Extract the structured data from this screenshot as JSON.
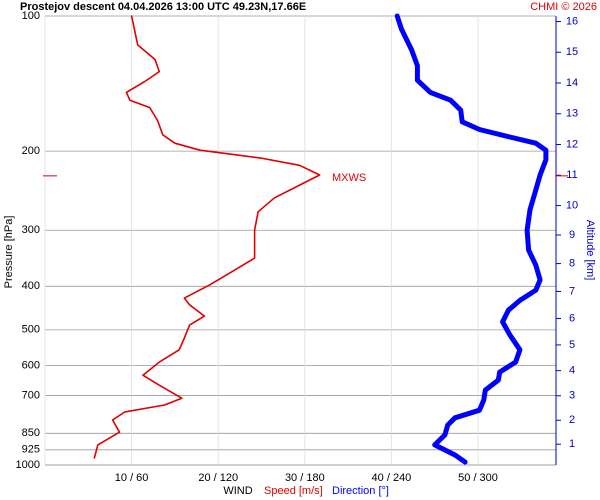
{
  "chart_data": {
    "type": "line",
    "title": "Prostejov  descent  04.04.2026 13:00 UTC  49.23N,17.66E",
    "credit": "CHMI © 2026",
    "ylabel": "Pressure [hPa]",
    "y2label": "Altitude [km]",
    "xlabel": "WIND",
    "log_y": true,
    "grid": true,
    "ylim": [
      1000,
      100
    ],
    "yticks": [
      100,
      200,
      300,
      400,
      500,
      600,
      700,
      850,
      925,
      1000
    ],
    "y2ticks": [
      1,
      2,
      3,
      4,
      5,
      6,
      7,
      8,
      9,
      10,
      11,
      12,
      13,
      14,
      15,
      16
    ],
    "xlim": [
      0,
      59
    ],
    "xticks": [
      {
        "value": 10,
        "label": "10 / 60"
      },
      {
        "value": 20,
        "label": "20 / 120"
      },
      {
        "value": 30,
        "label": "30 / 180"
      },
      {
        "value": 40,
        "label": "40 / 240"
      },
      {
        "value": 50,
        "label": "50 / 300"
      }
    ],
    "series": [
      {
        "name": "Speed [m/s]",
        "color": "#e00000",
        "pressure": [
          100,
          116,
          125,
          133,
          140,
          148,
          154,
          160,
          171,
          184,
          192,
          199,
          207,
          215,
          226,
          238,
          254,
          273,
          300,
          346,
          368,
          397,
          425,
          440,
          466,
          488,
          521,
          554,
          590,
          631,
          664,
          710,
          735,
          762,
          794,
          845,
          902,
          964
        ],
        "values": [
          10.0,
          10.7,
          12.7,
          13.2,
          11.5,
          9.4,
          9.8,
          12.1,
          13.0,
          13.6,
          15.0,
          17.9,
          24.8,
          29.4,
          31.7,
          29.4,
          26.5,
          24.6,
          24.2,
          24.2,
          21.9,
          19.0,
          16.1,
          16.7,
          18.4,
          16.7,
          16.1,
          15.5,
          13.2,
          11.3,
          13.2,
          15.8,
          13.8,
          9.2,
          7.8,
          8.6,
          6.1,
          5.7
        ]
      },
      {
        "name": "Direction [°]",
        "color": "#0000ff",
        "xlim": [
          0,
          354
        ],
        "pressure": [
          100,
          107,
          119,
          129,
          139,
          148,
          154,
          162,
          172,
          179,
          186,
          192,
          199,
          209,
          226,
          244,
          270,
          300,
          332,
          359,
          387,
          408,
          430,
          452,
          480,
          513,
          554,
          590,
          621,
          647,
          681,
          716,
          755,
          785,
          815,
          857,
          902,
          950,
          985
        ],
        "values": [
          244,
          247,
          254,
          258,
          258,
          267,
          281,
          288,
          289,
          301,
          322,
          340,
          347,
          347,
          343,
          340,
          336,
          334,
          335,
          340,
          343,
          340,
          329,
          321,
          317,
          322,
          329,
          326,
          315,
          314,
          305,
          304,
          301,
          284,
          279,
          277,
          270,
          284,
          291
        ]
      }
    ],
    "annotations": [
      {
        "text": "MXWS",
        "pressure": 227
      }
    ]
  }
}
